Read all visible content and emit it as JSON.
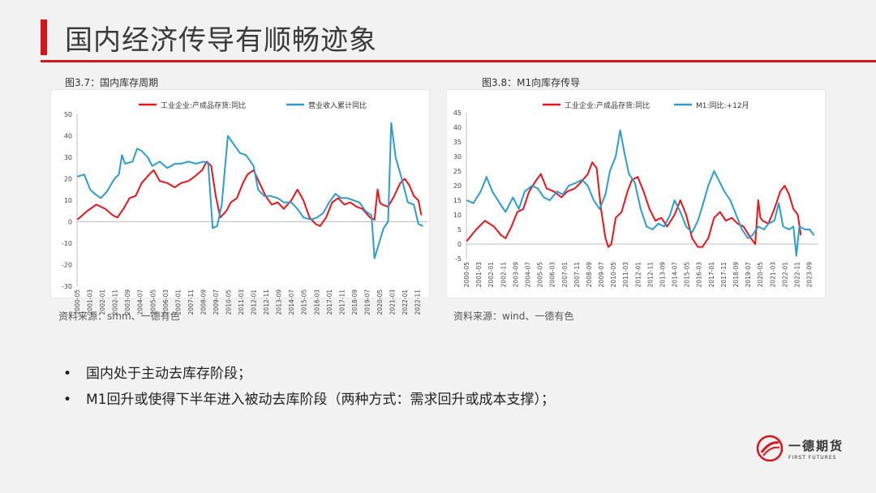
{
  "header": {
    "title": "国内经济传导有顺畅迹象"
  },
  "colors": {
    "accent": "#d7141a",
    "series_red": "#e8141c",
    "series_blue": "#2c9ccf"
  },
  "charts": [
    {
      "caption": "图3.7：国内库存周期",
      "source": "资料来源：smm、一德有色"
    },
    {
      "caption": "图3.8：M1向库存传导",
      "source": "资料来源：wind、一德有色"
    }
  ],
  "chart_data": [
    {
      "type": "line",
      "ylim": [
        -30,
        50
      ],
      "yticks": [
        "50",
        "40",
        "30",
        "20",
        "10",
        "0",
        "-10",
        "-20",
        "-30"
      ],
      "xticks": [
        "2000-05",
        "2001-03",
        "2002-01",
        "2002-11",
        "2003-09",
        "2004-07",
        "2005-05",
        "2006-03",
        "2007-01",
        "2007-11",
        "2008-09",
        "2009-07",
        "2010-05",
        "2011-03",
        "2012-01",
        "2012-11",
        "2013-09",
        "2014-07",
        "2015-05",
        "2016-03",
        "2017-01",
        "2017-11",
        "2018-09",
        "2019-07",
        "2020-05",
        "2021-03",
        "2022-01",
        "2022-11"
      ],
      "x_range": [
        2000.33,
        2023.5
      ],
      "series": [
        {
          "name": "工业企业:产成品存货:同比",
          "color": "#e8141c",
          "points": [
            [
              2000.35,
              1
            ],
            [
              2001.0,
              5
            ],
            [
              2001.6,
              8
            ],
            [
              2002.2,
              6
            ],
            [
              2002.7,
              3
            ],
            [
              2003.0,
              2
            ],
            [
              2003.4,
              6
            ],
            [
              2003.8,
              11
            ],
            [
              2004.2,
              12
            ],
            [
              2004.6,
              18
            ],
            [
              2005.1,
              22
            ],
            [
              2005.4,
              24
            ],
            [
              2005.8,
              19
            ],
            [
              2006.3,
              18
            ],
            [
              2006.8,
              16
            ],
            [
              2007.2,
              18
            ],
            [
              2007.7,
              19
            ],
            [
              2008.1,
              21
            ],
            [
              2008.6,
              24
            ],
            [
              2008.9,
              28
            ],
            [
              2009.2,
              26
            ],
            [
              2009.5,
              12
            ],
            [
              2009.8,
              2
            ],
            [
              2010.2,
              5
            ],
            [
              2010.5,
              9
            ],
            [
              2010.9,
              11
            ],
            [
              2011.3,
              18
            ],
            [
              2011.6,
              22
            ],
            [
              2012.0,
              24
            ],
            [
              2012.4,
              18
            ],
            [
              2012.8,
              12
            ],
            [
              2013.2,
              8
            ],
            [
              2013.6,
              9
            ],
            [
              2014.0,
              6
            ],
            [
              2014.5,
              10
            ],
            [
              2014.9,
              15
            ],
            [
              2015.3,
              10
            ],
            [
              2015.7,
              2
            ],
            [
              2016.1,
              -1
            ],
            [
              2016.4,
              -2
            ],
            [
              2016.8,
              2
            ],
            [
              2017.2,
              9
            ],
            [
              2017.6,
              11
            ],
            [
              2018.0,
              8
            ],
            [
              2018.4,
              9
            ],
            [
              2018.8,
              7
            ],
            [
              2019.2,
              6
            ],
            [
              2019.7,
              2
            ],
            [
              2020.0,
              1
            ],
            [
              2020.2,
              15
            ],
            [
              2020.35,
              9
            ],
            [
              2020.5,
              8
            ],
            [
              2020.9,
              7
            ],
            [
              2021.3,
              12
            ],
            [
              2021.7,
              18
            ],
            [
              2022.0,
              20
            ],
            [
              2022.3,
              17
            ],
            [
              2022.6,
              12
            ],
            [
              2022.9,
              10
            ],
            [
              2023.1,
              3
            ]
          ]
        },
        {
          "name": "营业收入累计同比",
          "color": "#2c9ccf",
          "points": [
            [
              2000.35,
              21
            ],
            [
              2000.8,
              22
            ],
            [
              2001.2,
              15
            ],
            [
              2001.5,
              13
            ],
            [
              2001.9,
              11
            ],
            [
              2002.3,
              14
            ],
            [
              2002.8,
              20
            ],
            [
              2003.1,
              22
            ],
            [
              2003.3,
              31
            ],
            [
              2003.5,
              27
            ],
            [
              2004.0,
              28
            ],
            [
              2004.3,
              34
            ],
            [
              2004.6,
              33
            ],
            [
              2005.0,
              30
            ],
            [
              2005.3,
              26
            ],
            [
              2005.8,
              28
            ],
            [
              2006.3,
              25
            ],
            [
              2006.8,
              27
            ],
            [
              2007.2,
              27
            ],
            [
              2007.7,
              28
            ],
            [
              2008.2,
              27
            ],
            [
              2008.7,
              28
            ],
            [
              2009.0,
              27
            ],
            [
              2009.3,
              -3
            ],
            [
              2009.6,
              -2
            ],
            [
              2009.9,
              8
            ],
            [
              2010.3,
              40
            ],
            [
              2010.7,
              36
            ],
            [
              2011.1,
              32
            ],
            [
              2011.5,
              31
            ],
            [
              2012.0,
              26
            ],
            [
              2012.3,
              15
            ],
            [
              2012.7,
              12
            ],
            [
              2013.1,
              12
            ],
            [
              2013.6,
              11
            ],
            [
              2014.0,
              9
            ],
            [
              2014.5,
              9
            ],
            [
              2014.9,
              6
            ],
            [
              2015.3,
              2
            ],
            [
              2015.8,
              1
            ],
            [
              2016.2,
              2
            ],
            [
              2016.6,
              4
            ],
            [
              2017.0,
              9
            ],
            [
              2017.4,
              13
            ],
            [
              2017.8,
              11
            ],
            [
              2018.2,
              11
            ],
            [
              2018.6,
              10
            ],
            [
              2019.0,
              9
            ],
            [
              2019.4,
              5
            ],
            [
              2019.8,
              3
            ],
            [
              2020.0,
              -17
            ],
            [
              2020.3,
              -10
            ],
            [
              2020.6,
              -3
            ],
            [
              2020.9,
              0
            ],
            [
              2021.1,
              46
            ],
            [
              2021.4,
              30
            ],
            [
              2021.8,
              20
            ],
            [
              2022.2,
              9
            ],
            [
              2022.6,
              8
            ],
            [
              2022.9,
              -1
            ],
            [
              2023.2,
              -2
            ]
          ]
        }
      ]
    },
    {
      "type": "line",
      "ylim": [
        -5,
        45
      ],
      "yticks": [
        "45",
        "40",
        "35",
        "30",
        "25",
        "20",
        "15",
        "10",
        "5",
        "0",
        "-5"
      ],
      "xticks": [
        "2000-05",
        "2001-03",
        "2002-01",
        "2002-11",
        "2003-09",
        "2004-07",
        "2005-05",
        "2006-03",
        "2007-01",
        "2007-11",
        "2008-09",
        "2009-07",
        "2010-05",
        "2011-03",
        "2012-01",
        "2012-11",
        "2013-09",
        "2014-07",
        "2015-05",
        "2016-03",
        "2017-01",
        "2017-11",
        "2018-09",
        "2019-07",
        "2020-05",
        "2021-03",
        "2022-01",
        "2022-11",
        "2023-09"
      ],
      "x_range": [
        2000.33,
        2024.3
      ],
      "series": [
        {
          "name": "工业企业:产成品存货:同比",
          "color": "#e8141c",
          "points": [
            [
              2000.35,
              1
            ],
            [
              2001.0,
              5
            ],
            [
              2001.6,
              8
            ],
            [
              2002.2,
              6
            ],
            [
              2002.7,
              3
            ],
            [
              2003.0,
              2
            ],
            [
              2003.4,
              6
            ],
            [
              2003.8,
              11
            ],
            [
              2004.2,
              12
            ],
            [
              2004.6,
              18
            ],
            [
              2005.1,
              22
            ],
            [
              2005.4,
              24
            ],
            [
              2005.8,
              19
            ],
            [
              2006.3,
              18
            ],
            [
              2006.8,
              16
            ],
            [
              2007.2,
              18
            ],
            [
              2007.7,
              19
            ],
            [
              2008.1,
              21
            ],
            [
              2008.6,
              24
            ],
            [
              2008.9,
              28
            ],
            [
              2009.2,
              26
            ],
            [
              2009.5,
              12
            ],
            [
              2009.8,
              2
            ],
            [
              2010.0,
              -1
            ],
            [
              2010.2,
              0
            ],
            [
              2010.5,
              9
            ],
            [
              2010.9,
              11
            ],
            [
              2011.3,
              18
            ],
            [
              2011.6,
              22
            ],
            [
              2012.0,
              23
            ],
            [
              2012.4,
              18
            ],
            [
              2012.8,
              12
            ],
            [
              2013.2,
              8
            ],
            [
              2013.6,
              9
            ],
            [
              2014.0,
              6
            ],
            [
              2014.5,
              10
            ],
            [
              2014.9,
              15
            ],
            [
              2015.3,
              10
            ],
            [
              2015.7,
              2
            ],
            [
              2016.1,
              -1
            ],
            [
              2016.4,
              -1
            ],
            [
              2016.8,
              2
            ],
            [
              2017.2,
              9
            ],
            [
              2017.6,
              11
            ],
            [
              2018.0,
              8
            ],
            [
              2018.4,
              9
            ],
            [
              2018.8,
              7
            ],
            [
              2019.2,
              6
            ],
            [
              2019.7,
              2
            ],
            [
              2020.0,
              0
            ],
            [
              2020.2,
              15
            ],
            [
              2020.35,
              9
            ],
            [
              2020.5,
              8
            ],
            [
              2020.9,
              7
            ],
            [
              2021.3,
              12
            ],
            [
              2021.7,
              18
            ],
            [
              2022.0,
              20
            ],
            [
              2022.3,
              17
            ],
            [
              2022.6,
              12
            ],
            [
              2022.9,
              10
            ],
            [
              2023.1,
              3
            ]
          ]
        },
        {
          "name": "M1:同比:+12月",
          "color": "#2c9ccf",
          "points": [
            [
              2000.35,
              15
            ],
            [
              2000.8,
              14
            ],
            [
              2001.3,
              18
            ],
            [
              2001.7,
              23
            ],
            [
              2002.1,
              18
            ],
            [
              2002.6,
              14
            ],
            [
              2003.0,
              11
            ],
            [
              2003.5,
              16
            ],
            [
              2003.9,
              12
            ],
            [
              2004.3,
              18
            ],
            [
              2004.8,
              20
            ],
            [
              2005.2,
              19
            ],
            [
              2005.6,
              16
            ],
            [
              2006.0,
              15
            ],
            [
              2006.5,
              18
            ],
            [
              2006.9,
              17
            ],
            [
              2007.3,
              20
            ],
            [
              2007.8,
              21
            ],
            [
              2008.2,
              22
            ],
            [
              2008.6,
              20
            ],
            [
              2009.0,
              15
            ],
            [
              2009.4,
              12
            ],
            [
              2009.8,
              17
            ],
            [
              2010.1,
              25
            ],
            [
              2010.5,
              30
            ],
            [
              2010.8,
              39
            ],
            [
              2011.1,
              31
            ],
            [
              2011.4,
              24
            ],
            [
              2011.8,
              21
            ],
            [
              2012.2,
              12
            ],
            [
              2012.6,
              6
            ],
            [
              2013.0,
              5
            ],
            [
              2013.4,
              7
            ],
            [
              2013.8,
              6
            ],
            [
              2014.2,
              10
            ],
            [
              2014.5,
              15
            ],
            [
              2014.9,
              11
            ],
            [
              2015.3,
              6
            ],
            [
              2015.7,
              4
            ],
            [
              2016.1,
              8
            ],
            [
              2016.4,
              13
            ],
            [
              2016.8,
              20
            ],
            [
              2017.2,
              25
            ],
            [
              2017.5,
              22
            ],
            [
              2017.9,
              18
            ],
            [
              2018.3,
              15
            ],
            [
              2018.7,
              10
            ],
            [
              2019.1,
              5
            ],
            [
              2019.5,
              2
            ],
            [
              2019.8,
              3
            ],
            [
              2020.2,
              6
            ],
            [
              2020.6,
              5
            ],
            [
              2020.9,
              7
            ],
            [
              2021.3,
              8
            ],
            [
              2021.6,
              14
            ],
            [
              2021.9,
              6
            ],
            [
              2022.3,
              5
            ],
            [
              2022.6,
              6
            ],
            [
              2022.8,
              -4
            ],
            [
              2023.0,
              6
            ],
            [
              2023.4,
              5
            ],
            [
              2023.7,
              5
            ],
            [
              2024.0,
              3
            ]
          ]
        }
      ]
    }
  ],
  "bullets": [
    "国内处于主动去库存阶段；",
    "M1回升或使得下半年进入被动去库阶段（两种方式：需求回升或成本支撑）；"
  ],
  "logo": {
    "name": "一德期货",
    "sub": "FIRST FUTURES"
  }
}
